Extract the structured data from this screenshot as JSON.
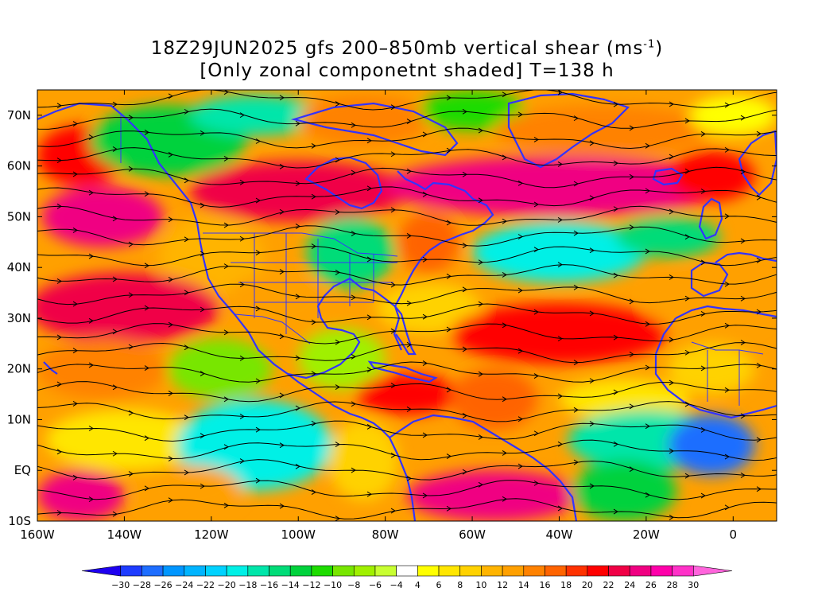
{
  "title": {
    "line1": "18Z29JUN2025 gfs 200–850mb vertical shear (ms",
    "line1_sup": "-1",
    "line1_end": ")",
    "line2": "[Only zonal componetnt shaded] T=138 h"
  },
  "map": {
    "lon_range": [
      -160,
      10
    ],
    "lat_range": [
      -10,
      75
    ],
    "lon_ticks": [
      {
        "value": -160,
        "label": "160W"
      },
      {
        "value": -140,
        "label": "140W"
      },
      {
        "value": -120,
        "label": "120W"
      },
      {
        "value": -100,
        "label": "100W"
      },
      {
        "value": -80,
        "label": "80W"
      },
      {
        "value": -60,
        "label": "60W"
      },
      {
        "value": -40,
        "label": "40W"
      },
      {
        "value": -20,
        "label": "20W"
      },
      {
        "value": 0,
        "label": "0"
      }
    ],
    "lat_ticks": [
      {
        "value": 70,
        "label": "70N"
      },
      {
        "value": 60,
        "label": "60N"
      },
      {
        "value": 50,
        "label": "50N"
      },
      {
        "value": 40,
        "label": "40N"
      },
      {
        "value": 30,
        "label": "30N"
      },
      {
        "value": 20,
        "label": "20N"
      },
      {
        "value": 10,
        "label": "10N"
      },
      {
        "value": 0,
        "label": "EQ"
      },
      {
        "value": -10,
        "label": "10S"
      }
    ],
    "coastline_color": "#3333ff",
    "streamline_color": "#000000",
    "contour_color": "#990099"
  },
  "colorbar": {
    "labels": [
      "-30",
      "-28",
      "-26",
      "-24",
      "-22",
      "-20",
      "-18",
      "-16",
      "-14",
      "-12",
      "-10",
      "-8",
      "-6",
      "-4",
      "4",
      "6",
      "8",
      "10",
      "12",
      "14",
      "16",
      "18",
      "20",
      "22",
      "24",
      "26",
      "28",
      "30"
    ],
    "colors": [
      "#1e00f0",
      "#1e3cff",
      "#1e6eff",
      "#0096ff",
      "#00b4ff",
      "#00d2ff",
      "#00f0e6",
      "#00e6aa",
      "#00dc78",
      "#00d23c",
      "#1edc00",
      "#78e600",
      "#a0f000",
      "#c8ff32",
      "#ffffff",
      "#ffff00",
      "#ffe600",
      "#ffd200",
      "#ffb400",
      "#ffa000",
      "#ff8200",
      "#ff6400",
      "#ff3200",
      "#ff0000",
      "#f00046",
      "#f00082",
      "#ff00aa",
      "#ff32c8",
      "#ff64dc"
    ]
  },
  "shading_regions": [
    {
      "lon": -150,
      "lat": 62,
      "rx": 10,
      "ry": 6,
      "value": 22
    },
    {
      "lon": -130,
      "lat": 65,
      "rx": 18,
      "ry": 7,
      "value": -12
    },
    {
      "lon": -110,
      "lat": 70,
      "rx": 15,
      "ry": 4,
      "value": -16
    },
    {
      "lon": -85,
      "lat": 69,
      "rx": 15,
      "ry": 5,
      "value": 16
    },
    {
      "lon": -60,
      "lat": 71,
      "rx": 12,
      "ry": 4,
      "value": -10
    },
    {
      "lon": -30,
      "lat": 67,
      "rx": 25,
      "ry": 5,
      "value": 16
    },
    {
      "lon": 0,
      "lat": 70,
      "rx": 10,
      "ry": 4,
      "value": 6
    },
    {
      "lon": -145,
      "lat": 50,
      "rx": 14,
      "ry": 6,
      "value": 26
    },
    {
      "lon": -100,
      "lat": 55,
      "rx": 25,
      "ry": 6,
      "value": 24
    },
    {
      "lon": -40,
      "lat": 56,
      "rx": 40,
      "ry": 6,
      "value": 26
    },
    {
      "lon": -5,
      "lat": 58,
      "rx": 10,
      "ry": 5,
      "value": 22
    },
    {
      "lon": -120,
      "lat": 42,
      "rx": 12,
      "ry": 8,
      "value": 12
    },
    {
      "lon": -88,
      "lat": 43,
      "rx": 10,
      "ry": 7,
      "value": -14
    },
    {
      "lon": -70,
      "lat": 45,
      "rx": 7,
      "ry": 6,
      "value": 18
    },
    {
      "lon": -40,
      "lat": 43,
      "rx": 20,
      "ry": 6,
      "value": -18
    },
    {
      "lon": -15,
      "lat": 46,
      "rx": 12,
      "ry": 4,
      "value": -14
    },
    {
      "lon": -140,
      "lat": 32,
      "rx": 22,
      "ry": 7,
      "value": 24
    },
    {
      "lon": -105,
      "lat": 33,
      "rx": 12,
      "ry": 6,
      "value": 14
    },
    {
      "lon": -70,
      "lat": 32,
      "rx": 12,
      "ry": 5,
      "value": 10
    },
    {
      "lon": -40,
      "lat": 27,
      "rx": 25,
      "ry": 6,
      "value": 22
    },
    {
      "lon": -5,
      "lat": 33,
      "rx": 15,
      "ry": 6,
      "value": 14
    },
    {
      "lon": -145,
      "lat": 20,
      "rx": 15,
      "ry": 6,
      "value": 16
    },
    {
      "lon": -118,
      "lat": 20,
      "rx": 12,
      "ry": 6,
      "value": -8
    },
    {
      "lon": -90,
      "lat": 22,
      "rx": 10,
      "ry": 6,
      "value": -6
    },
    {
      "lon": -75,
      "lat": 15,
      "rx": 12,
      "ry": 4,
      "value": 22
    },
    {
      "lon": -55,
      "lat": 14,
      "rx": 10,
      "ry": 6,
      "value": 18
    },
    {
      "lon": -25,
      "lat": 14,
      "rx": 15,
      "ry": 4,
      "value": 8
    },
    {
      "lon": -5,
      "lat": 20,
      "rx": 10,
      "ry": 5,
      "value": 10
    },
    {
      "lon": -140,
      "lat": 6,
      "rx": 18,
      "ry": 6,
      "value": 8
    },
    {
      "lon": -110,
      "lat": 5,
      "rx": 18,
      "ry": 9,
      "value": -18
    },
    {
      "lon": -85,
      "lat": 2,
      "rx": 8,
      "ry": 8,
      "value": 10
    },
    {
      "lon": -20,
      "lat": 6,
      "rx": 18,
      "ry": 6,
      "value": -16
    },
    {
      "lon": -5,
      "lat": 5,
      "rx": 10,
      "ry": 6,
      "value": -26
    },
    {
      "lon": -150,
      "lat": -5,
      "rx": 10,
      "ry": 5,
      "value": 26
    },
    {
      "lon": -125,
      "lat": -4,
      "rx": 12,
      "ry": 5,
      "value": 14
    },
    {
      "lon": -55,
      "lat": -5,
      "rx": 20,
      "ry": 5,
      "value": 26
    },
    {
      "lon": -25,
      "lat": -4,
      "rx": 12,
      "ry": 6,
      "value": -12
    }
  ]
}
